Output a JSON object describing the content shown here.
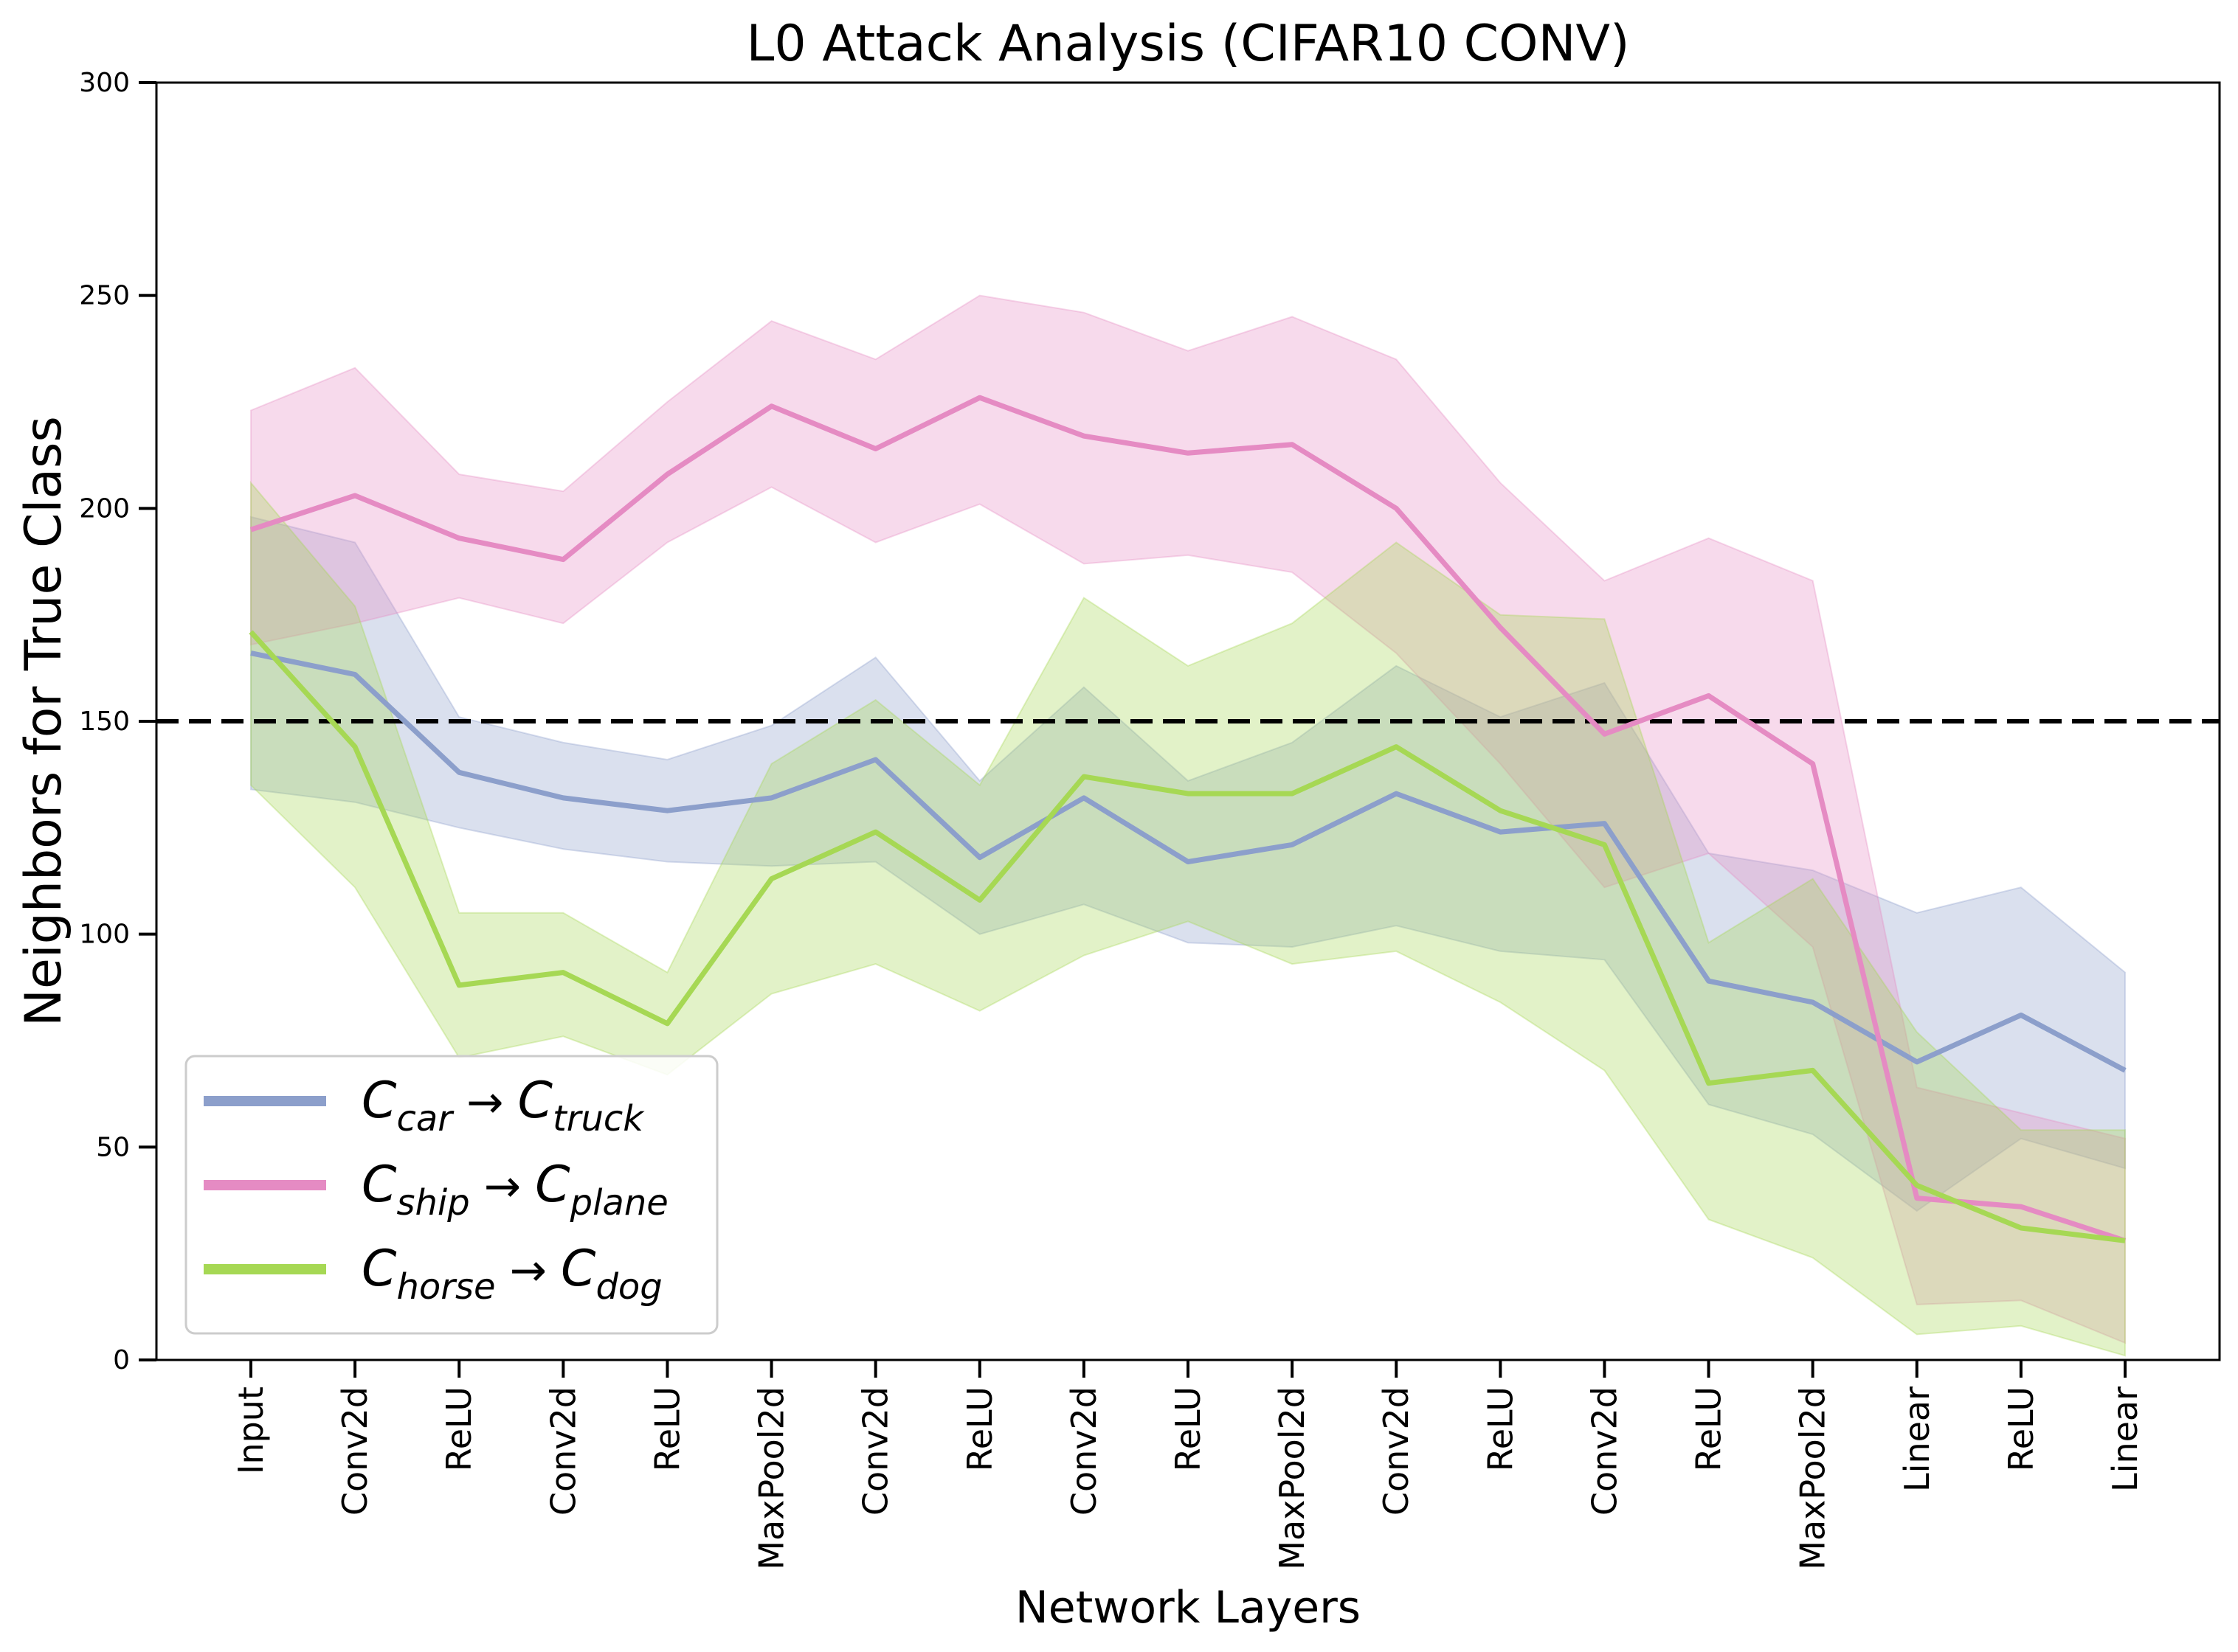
{
  "chart_data": {
    "type": "line",
    "title": "L0 Attack Analysis (CIFAR10 CONV)",
    "xlabel": "Network Layers",
    "ylabel": "Neighbors for True Class",
    "ylim": [
      0,
      300
    ],
    "yticks": [
      0,
      50,
      100,
      150,
      200,
      250,
      300
    ],
    "grid": false,
    "legend_position": "lower-left",
    "categories": [
      "Input",
      "Conv2d",
      "ReLU",
      "Conv2d",
      "ReLU",
      "MaxPool2d",
      "Conv2d",
      "ReLU",
      "Conv2d",
      "ReLU",
      "MaxPool2d",
      "Conv2d",
      "ReLU",
      "Conv2d",
      "ReLU",
      "MaxPool2d",
      "Linear",
      "ReLU",
      "Linear"
    ],
    "reference_line": {
      "y": 150,
      "style": "dashed",
      "color": "#000000"
    },
    "series": [
      {
        "name": "C_car → C_truck",
        "legend": {
          "base": "C",
          "sub1": "car",
          "arrow": "→",
          "sub2": "truck"
        },
        "color": "#8c9fcb",
        "values": [
          166,
          161,
          138,
          132,
          129,
          132,
          141,
          118,
          132,
          117,
          121,
          133,
          124,
          126,
          89,
          84,
          70,
          81,
          68
        ],
        "upper": [
          198,
          192,
          151,
          145,
          141,
          149,
          165,
          136,
          158,
          136,
          145,
          163,
          151,
          159,
          119,
          115,
          105,
          111,
          91
        ],
        "lower": [
          134,
          131,
          125,
          120,
          117,
          116,
          117,
          100,
          107,
          98,
          97,
          102,
          96,
          94,
          60,
          53,
          35,
          52,
          45
        ]
      },
      {
        "name": "C_ship → C_plane",
        "legend": {
          "base": "C",
          "sub1": "ship",
          "arrow": "→",
          "sub2": "plane"
        },
        "color": "#e58bc3",
        "values": [
          195,
          203,
          193,
          188,
          208,
          224,
          214,
          226,
          217,
          213,
          215,
          200,
          172,
          147,
          156,
          140,
          38,
          36,
          28
        ],
        "upper": [
          223,
          233,
          208,
          204,
          225,
          244,
          235,
          250,
          246,
          237,
          245,
          235,
          206,
          183,
          193,
          183,
          64,
          58,
          52
        ],
        "lower": [
          168,
          173,
          179,
          173,
          192,
          205,
          192,
          201,
          187,
          189,
          185,
          166,
          140,
          111,
          119,
          97,
          13,
          14,
          4
        ]
      },
      {
        "name": "C_horse → C_dog",
        "legend": {
          "base": "C",
          "sub1": "horse",
          "arrow": "→",
          "sub2": "dog"
        },
        "color": "#a6d854",
        "values": [
          171,
          144,
          88,
          91,
          79,
          113,
          124,
          108,
          137,
          133,
          133,
          144,
          129,
          121,
          65,
          68,
          41,
          31,
          28
        ],
        "upper": [
          206,
          177,
          105,
          105,
          91,
          140,
          155,
          135,
          179,
          163,
          173,
          192,
          175,
          174,
          98,
          113,
          77,
          54,
          54
        ],
        "lower": [
          135,
          111,
          71,
          76,
          67,
          86,
          93,
          82,
          95,
          103,
          93,
          96,
          84,
          68,
          33,
          24,
          6,
          8,
          1
        ]
      }
    ]
  }
}
